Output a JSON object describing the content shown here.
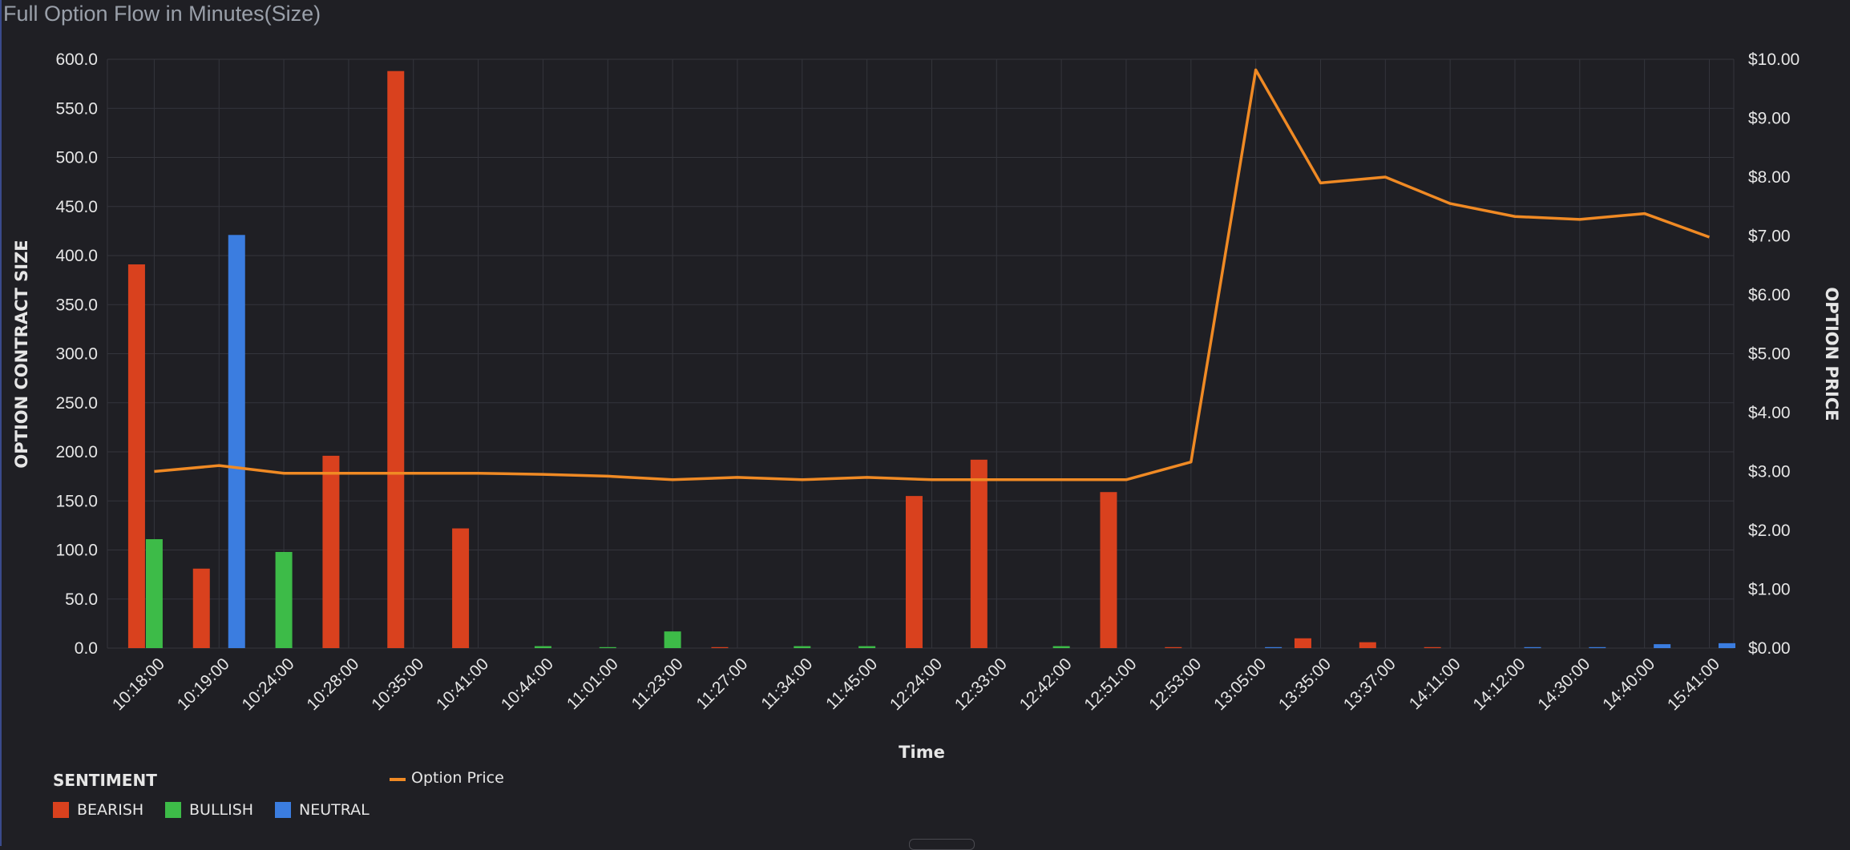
{
  "page_title": "Full Option Flow in Minutes(Size)",
  "colors": {
    "bearish": "#d9411e",
    "bullish": "#3dbb48",
    "neutral": "#3b7de0",
    "price": "#f08a24",
    "grid": "#34353c",
    "background": "#1f1f24"
  },
  "legend": {
    "heading": "SENTIMENT",
    "items": [
      {
        "label": "BEARISH",
        "color": "#d9411e"
      },
      {
        "label": "BULLISH",
        "color": "#3dbb48"
      },
      {
        "label": "NEUTRAL",
        "color": "#3b7de0"
      }
    ],
    "line_label": "Option Price"
  },
  "chart_data": {
    "type": "bar",
    "title": "Full Option Flow in Minutes(Size)",
    "xlabel": "Time",
    "ylabel": "OPTION CONTRACT SIZE",
    "y2label": "OPTION PRICE",
    "ylim": [
      0,
      600
    ],
    "y2lim": [
      0,
      10
    ],
    "y_ticks": [
      "0.0",
      "50.0",
      "100.0",
      "150.0",
      "200.0",
      "250.0",
      "300.0",
      "350.0",
      "400.0",
      "450.0",
      "500.0",
      "550.0",
      "600.0"
    ],
    "y2_ticks": [
      "$0.00",
      "$1.00",
      "$2.00",
      "$3.00",
      "$4.00",
      "$5.00",
      "$6.00",
      "$7.00",
      "$8.00",
      "$9.00",
      "$10.00"
    ],
    "categories": [
      "10:18:00",
      "10:19:00",
      "10:24:00",
      "10:28:00",
      "10:35:00",
      "10:41:00",
      "10:44:00",
      "11:01:00",
      "11:23:00",
      "11:27:00",
      "11:34:00",
      "11:45:00",
      "12:24:00",
      "12:33:00",
      "12:42:00",
      "12:51:00",
      "12:53:00",
      "13:05:00",
      "13:35:00",
      "13:37:00",
      "14:11:00",
      "14:12:00",
      "14:30:00",
      "14:40:00",
      "15:41:00"
    ],
    "grid": true,
    "legend_position": "bottom-left",
    "series": [
      {
        "name": "BEARISH",
        "type": "bar",
        "values": [
          391,
          81,
          0,
          196,
          588,
          122,
          0,
          0,
          0,
          1,
          0,
          0,
          155,
          192,
          0,
          159,
          1,
          0,
          10,
          6,
          1,
          0,
          0,
          0,
          0
        ]
      },
      {
        "name": "BULLISH",
        "type": "bar",
        "values": [
          111,
          0,
          98,
          0,
          0,
          0,
          2,
          1,
          17,
          0,
          2,
          2,
          0,
          0,
          2,
          0,
          0,
          0,
          0,
          0,
          0,
          0,
          0,
          0,
          0
        ]
      },
      {
        "name": "NEUTRAL",
        "type": "bar",
        "values": [
          0,
          421,
          0,
          0,
          0,
          0,
          0,
          0,
          0,
          0,
          0,
          0,
          0,
          0,
          0,
          0,
          0,
          1,
          0,
          0,
          0,
          1,
          1,
          4,
          5
        ]
      },
      {
        "name": "Option Price",
        "type": "line",
        "axis": "right",
        "values": [
          3.0,
          3.1,
          2.97,
          2.97,
          2.97,
          2.97,
          2.95,
          2.92,
          2.86,
          2.9,
          2.86,
          2.9,
          2.86,
          2.86,
          2.86,
          2.86,
          3.16,
          9.82,
          7.9,
          8.0,
          7.55,
          7.33,
          7.28,
          7.38,
          6.98
        ]
      }
    ]
  }
}
